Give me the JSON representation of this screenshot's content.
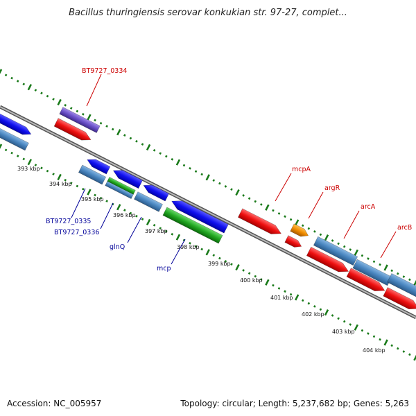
{
  "title": "Bacillus thuringiensis serovar konkukian str. 97-27, complet...",
  "footer": {
    "accession": "Accession: NC_005957",
    "summary": "Topology: circular; Length: 5,237,682 bp; Genes: 5,263"
  },
  "kbp_labels": [
    "393 kbp",
    "394 kbp",
    "395 kbp",
    "396 kbp",
    "397 kbp",
    "398 kbp",
    "399 kbp",
    "400 kbp",
    "401 kbp",
    "402 kbp",
    "403 kbp",
    "404 kbp"
  ],
  "gene_labels": {
    "bt0334": "BT9727_0334",
    "bt0335": "BT9727_0335",
    "bt0336": "BT9727_0336",
    "glnq": "glnQ",
    "mcp": "mcp",
    "mcpa": "mcpA",
    "argr": "argR",
    "arca": "arcA",
    "arcb": "arcB"
  },
  "colors": {
    "blue": "#1010ee",
    "steel": "#4a86c0",
    "red": "#ee1010",
    "green": "#22a822",
    "purple": "#6a50c8",
    "orange": "#f08c00",
    "ticks": "#1a7a1a",
    "backbone": "#888888",
    "label_red": "#cc0000",
    "label_blue": "#000099"
  }
}
